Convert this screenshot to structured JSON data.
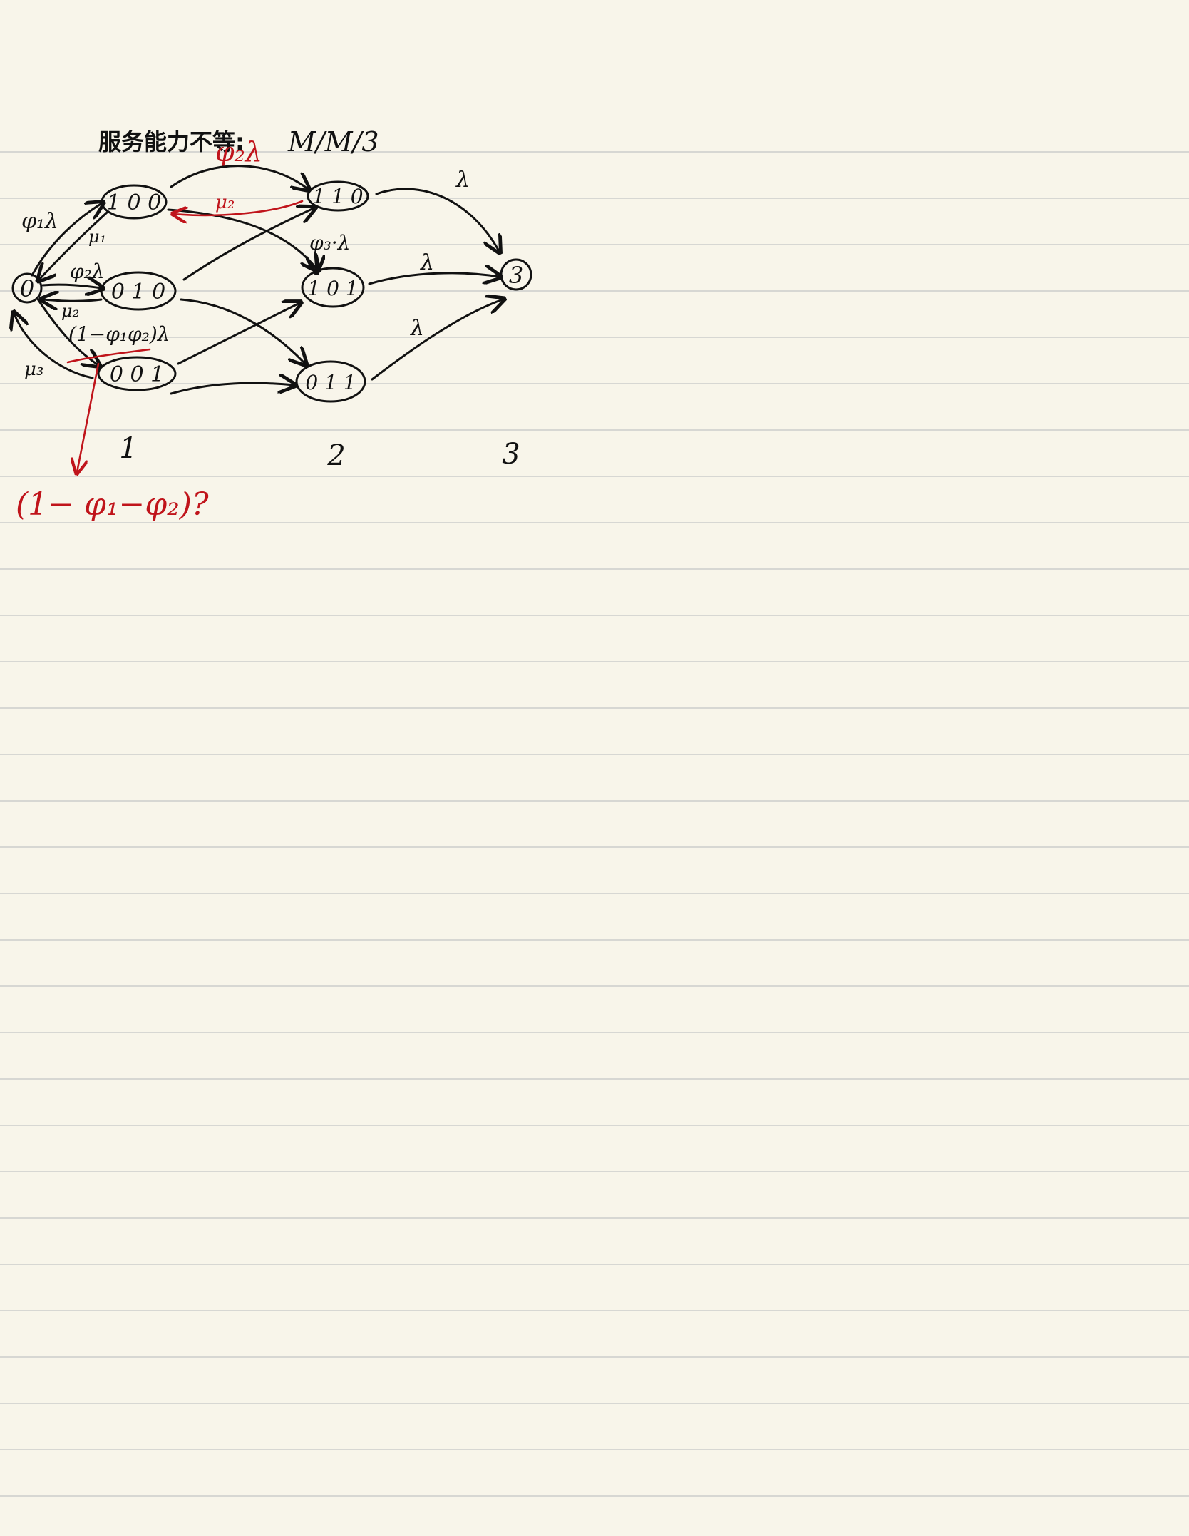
{
  "title": "服务能力不等:",
  "model": "M/M/3",
  "states": {
    "s0": "0",
    "s100": "1 0 0",
    "s010": "0 1 0",
    "s001": "0 0 1",
    "s110": "1 1 0",
    "s101": "1 0 1",
    "s011": "0 1 1",
    "s3": "3"
  },
  "edge_labels": {
    "phi1_lambda": "φ₁λ",
    "phi2_lambda": "φ₂λ",
    "one_minus_lambda": "(1−φ₁φ₂)λ",
    "mu1": "μ₁",
    "mu2": "μ₂",
    "mu3": "μ₃",
    "phi3_lambda": "φ₃·λ",
    "lambda": "λ"
  },
  "red_notes": {
    "phi2_lambda": "φ₂λ",
    "mu2": "μ₂",
    "question": "(1− φ₁−φ₂)?"
  },
  "columns": [
    "1",
    "2",
    "3"
  ],
  "colors": {
    "ink": "#111111",
    "red_ink": "#c0141b",
    "paper": "#f8f5ea",
    "rule": "#d7d7d3"
  }
}
